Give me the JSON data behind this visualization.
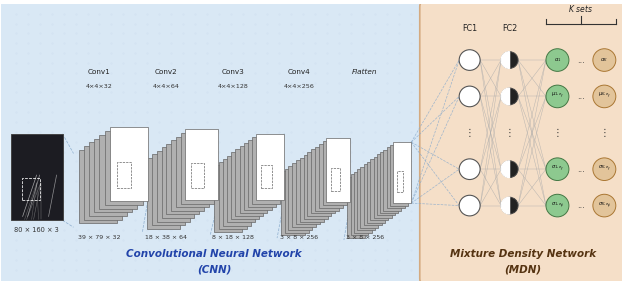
{
  "fig_width": 6.23,
  "fig_height": 2.82,
  "dpi": 100,
  "cnn_bg_color": "#d9e8f5",
  "mdn_bg_color": "#f5dfc8",
  "cnn_label": "Convolutional Neural Network",
  "cnn_sublabel": "(CNN)",
  "mdn_label": "Mixture Density Network",
  "mdn_sublabel": "(MDN)",
  "conv_names": [
    "Conv1",
    "Conv2",
    "Conv3",
    "Conv4"
  ],
  "conv_dims": [
    "4×4×32",
    "4×4×64",
    "4×4×128",
    "4×4×256"
  ],
  "flatten_label": "Flatten",
  "fc_labels": [
    "FC1",
    "FC2"
  ],
  "k_sets_label": "K sets",
  "input_dim_label": "80 × 160 × 3",
  "conv_dim_labels": [
    "39 × 79 × 32",
    "18 × 38 × 64",
    "8 × 18 × 128",
    "3 × 8 × 256"
  ],
  "flatten_dim_label": "3 × 8 × 256",
  "green_color": "#8dc98f",
  "tan_color": "#e2c49a",
  "white_color": "#ffffff",
  "dark_color": "#222222",
  "node_edge_color": "#555555",
  "connection_color": "#88aacc",
  "grid_color": "#c0d4e8"
}
